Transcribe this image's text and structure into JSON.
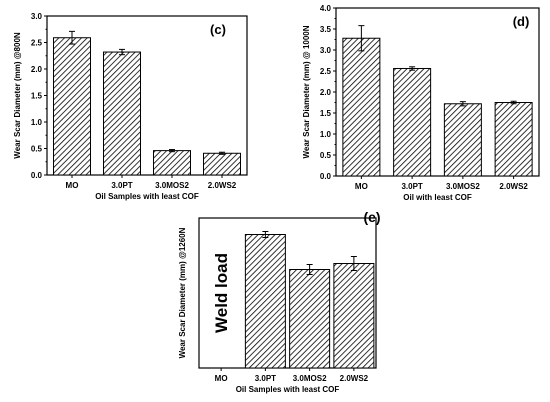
{
  "figure": {
    "palette": {
      "axis": "#000000",
      "bar_fill": "#ffffff",
      "hatch": "#000000",
      "error_bar": "#000000",
      "text": "#000000"
    },
    "bar_pattern": "diagonal-hatch"
  },
  "chart_data": [
    {
      "panel": "(c)",
      "type": "bar",
      "categories": [
        "MO",
        "3.0PT",
        "3.0MOS2",
        "2.0WS2"
      ],
      "values": [
        2.59,
        2.32,
        0.46,
        0.41
      ],
      "errors": [
        0.12,
        0.05,
        0.02,
        0.02
      ],
      "xlabel": "Oil Samples with least COF",
      "ylabel": "Wear Scar Diameter (mm) @800N",
      "ylim": [
        0,
        3.0
      ],
      "yticks": [
        "0.0",
        "0.5",
        "1.0",
        "1.5",
        "2.0",
        "2.5",
        "3.0"
      ],
      "grid": false,
      "legend": "none"
    },
    {
      "panel": "(d)",
      "type": "bar",
      "categories": [
        "MO",
        "3.0PT",
        "3.0MOS2",
        "2.0WS2"
      ],
      "values": [
        3.28,
        2.56,
        1.72,
        1.75
      ],
      "errors": [
        0.3,
        0.04,
        0.05,
        0.03
      ],
      "xlabel": "Oil with least COF",
      "ylabel": "Wear Scar Diameter (mm) @ 1000N",
      "ylim": [
        0,
        4.0
      ],
      "yticks": [
        "0.0",
        "0.5",
        "1.0",
        "1.5",
        "2.0",
        "2.5",
        "3.0",
        "3.5",
        "4.0"
      ],
      "grid": false,
      "legend": "none"
    },
    {
      "panel": "(e)",
      "type": "bar",
      "categories": [
        "MO",
        "3.0PT",
        "3.0MOS2",
        "2.0WS2"
      ],
      "values": [
        null,
        2.67,
        1.97,
        2.09
      ],
      "errors": [
        null,
        0.06,
        0.1,
        0.14
      ],
      "xlabel": "Oil Samples with least COF",
      "ylabel": "Wear Scar Diameter (mm) @1260N",
      "ylim": [
        0,
        3.0
      ],
      "yticks": [],
      "grid": false,
      "legend": "none",
      "annotation": "Weld load"
    }
  ]
}
